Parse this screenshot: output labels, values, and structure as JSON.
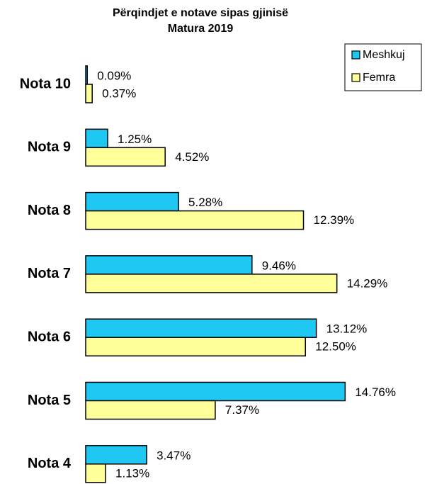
{
  "chart_data": {
    "type": "bar",
    "orientation": "horizontal",
    "title": "Përqindjet e notave sipas gjinisë",
    "subtitle": "Matura 2019",
    "categories": [
      "Nota 10",
      "Nota 9",
      "Nota 8",
      "Nota 7",
      "Nota 6",
      "Nota 5",
      "Nota 4"
    ],
    "series": [
      {
        "name": "Meshkuj",
        "color": "#1ec8f2",
        "values": [
          0.09,
          1.25,
          5.28,
          9.46,
          13.12,
          14.76,
          3.47
        ],
        "value_labels": [
          "0.09%",
          "1.25%",
          "5.28%",
          "9.46%",
          "13.12%",
          "14.76%",
          "3.47%"
        ]
      },
      {
        "name": "Femra",
        "color": "#ffff99",
        "values": [
          0.37,
          4.52,
          12.39,
          14.29,
          12.5,
          7.37,
          1.13
        ],
        "value_labels": [
          "0.37%",
          "4.52%",
          "12.39%",
          "14.29%",
          "12.50%",
          "7.37%",
          "1.13%"
        ]
      }
    ],
    "xlim": [
      0,
      19.5
    ],
    "legend": "top-right",
    "grid": false
  }
}
